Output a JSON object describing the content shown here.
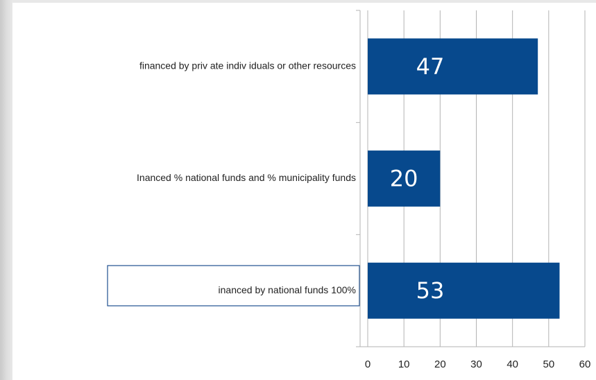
{
  "chart_data": {
    "type": "bar",
    "orientation": "horizontal",
    "categories": [
      "financed by priv ate indiv iduals or other resources",
      "Inanced % national funds and % municipality funds",
      "inanced by national funds 100%"
    ],
    "values": [
      47,
      20,
      53
    ],
    "color": "#07498d",
    "xlim": [
      0,
      60
    ],
    "xticks": [
      0,
      10,
      20,
      30,
      40,
      50,
      60
    ],
    "grid": true
  }
}
